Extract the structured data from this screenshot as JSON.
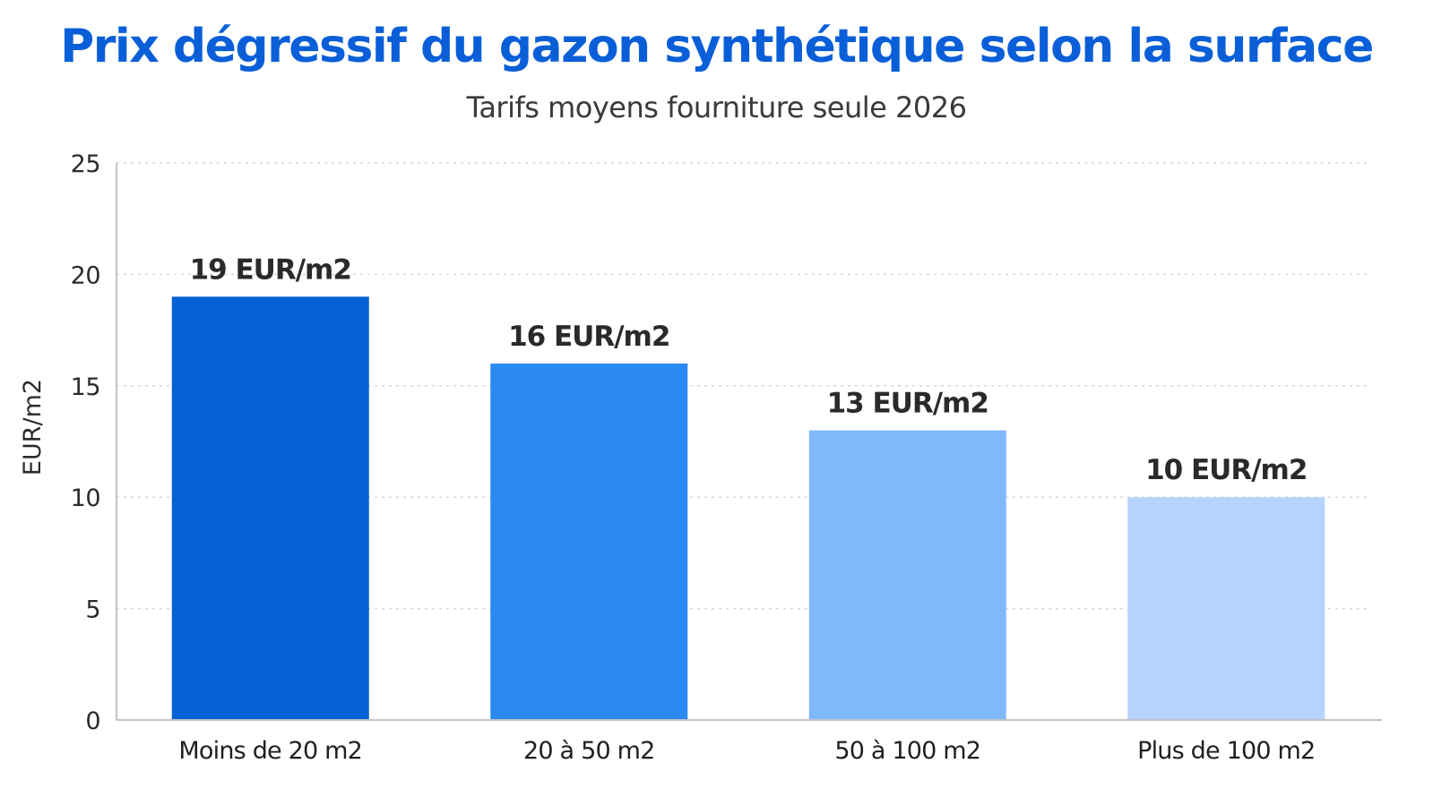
{
  "chart_data": {
    "type": "bar",
    "title": "Prix dégressif du gazon synthétique selon la surface",
    "subtitle": "Tarifs moyens fourniture seule 2026",
    "xlabel": "",
    "ylabel": "EUR/m2",
    "ylim": [
      0,
      25
    ],
    "yticks": [
      "0",
      "5",
      "10",
      "15",
      "20",
      "25"
    ],
    "categories": [
      "Moins de 20 m2",
      "20 à 50 m2",
      "50 à 100 m2",
      "Plus de 100 m2"
    ],
    "values": [
      19,
      16,
      13,
      10
    ],
    "data_labels": [
      "19 EUR/m2",
      "16 EUR/m2",
      "13 EUR/m2",
      "10 EUR/m2"
    ],
    "bar_colors": [
      "#0461d6",
      "#2b89f2",
      "#80b9fb",
      "#b4d4fc"
    ],
    "grid": true,
    "legend": "none"
  },
  "colors": {
    "title": "#0a5fd8",
    "gridline": "#d6d6d6",
    "axis": "#c4c4c4"
  }
}
